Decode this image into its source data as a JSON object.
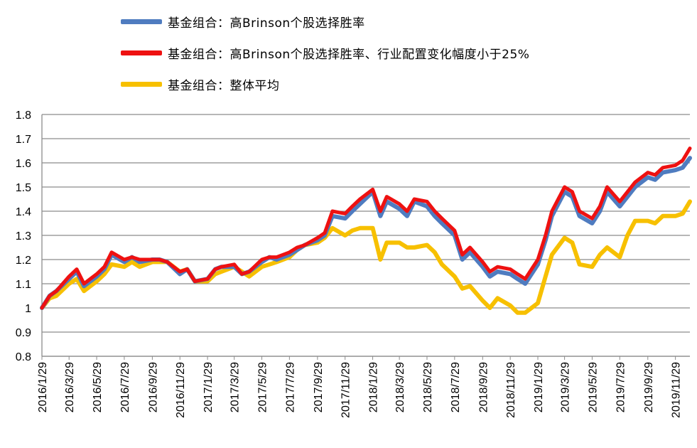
{
  "legend": [
    {
      "label": "基金组合：高Brinson个股选择胜率",
      "color": "#4F7CC0"
    },
    {
      "label": "基金组合：高Brinson个股选择胜率、行业配置变化幅度小于25%",
      "color": "#EE1111"
    },
    {
      "label": "基金组合：整体平均",
      "color": "#F7C000"
    }
  ],
  "chart_data": {
    "type": "line",
    "title": "",
    "xlabel": "",
    "ylabel": "",
    "ylim": [
      0.8,
      1.8
    ],
    "yticks": [
      "0.8",
      "0.9",
      "1",
      "1.1",
      "1.2",
      "1.3",
      "1.4",
      "1.5",
      "1.6",
      "1.7",
      "1.8"
    ],
    "grid": "horizontal",
    "legend_position": "top",
    "xticks": [
      "2016/1/29",
      "2016/3/29",
      "2016/5/29",
      "2016/7/29",
      "2016/9/29",
      "2016/11/29",
      "2017/1/29",
      "2017/3/29",
      "2017/5/29",
      "2017/7/29",
      "2017/9/29",
      "2017/11/29",
      "2018/1/29",
      "2018/3/29",
      "2018/5/29",
      "2018/7/29",
      "2018/9/29",
      "2018/11/29",
      "2019/1/29",
      "2019/3/29",
      "2019/5/29",
      "2019/7/29",
      "2019/9/29",
      "2019/11/29"
    ],
    "x": [
      "2016/1/29",
      "2016/2/15",
      "2016/3/1",
      "2016/3/29",
      "2016/4/15",
      "2016/5/1",
      "2016/5/29",
      "2016/6/15",
      "2016/7/1",
      "2016/7/29",
      "2016/8/15",
      "2016/9/1",
      "2016/9/29",
      "2016/10/15",
      "2016/11/1",
      "2016/11/29",
      "2016/12/15",
      "2017/1/1",
      "2017/1/29",
      "2017/2/15",
      "2017/3/1",
      "2017/3/29",
      "2017/4/15",
      "2017/5/1",
      "2017/5/29",
      "2017/6/15",
      "2017/7/1",
      "2017/7/29",
      "2017/8/15",
      "2017/9/1",
      "2017/9/29",
      "2017/10/15",
      "2017/11/1",
      "2017/11/29",
      "2017/12/15",
      "2018/1/1",
      "2018/1/29",
      "2018/2/15",
      "2018/3/1",
      "2018/3/29",
      "2018/4/15",
      "2018/5/1",
      "2018/5/29",
      "2018/6/15",
      "2018/7/1",
      "2018/7/29",
      "2018/8/15",
      "2018/9/1",
      "2018/9/29",
      "2018/10/15",
      "2018/11/1",
      "2018/11/29",
      "2018/12/15",
      "2019/1/1",
      "2019/1/29",
      "2019/2/15",
      "2019/3/1",
      "2019/3/29",
      "2019/4/15",
      "2019/5/1",
      "2019/5/29",
      "2019/6/15",
      "2019/7/1",
      "2019/7/29",
      "2019/8/15",
      "2019/9/1",
      "2019/9/29",
      "2019/10/15",
      "2019/11/1",
      "2019/11/29",
      "2019/12/15",
      "2019/12/31"
    ],
    "series": [
      {
        "name": "基金组合：高Brinson个股选择胜率",
        "color": "#4F7CC0",
        "values": [
          1.0,
          1.05,
          1.07,
          1.12,
          1.15,
          1.09,
          1.13,
          1.16,
          1.22,
          1.19,
          1.21,
          1.19,
          1.2,
          1.2,
          1.19,
          1.14,
          1.16,
          1.11,
          1.12,
          1.16,
          1.17,
          1.17,
          1.14,
          1.15,
          1.19,
          1.21,
          1.2,
          1.22,
          1.24,
          1.26,
          1.28,
          1.3,
          1.38,
          1.37,
          1.4,
          1.43,
          1.48,
          1.38,
          1.44,
          1.41,
          1.38,
          1.44,
          1.42,
          1.38,
          1.35,
          1.3,
          1.2,
          1.23,
          1.17,
          1.13,
          1.15,
          1.14,
          1.12,
          1.1,
          1.18,
          1.28,
          1.38,
          1.48,
          1.46,
          1.38,
          1.35,
          1.4,
          1.48,
          1.42,
          1.46,
          1.5,
          1.54,
          1.53,
          1.56,
          1.57,
          1.58,
          1.62
        ]
      },
      {
        "name": "基金组合：高Brinson个股选择胜率、行业配置变化幅度小于25%",
        "color": "#EE1111",
        "values": [
          1.0,
          1.05,
          1.07,
          1.13,
          1.16,
          1.1,
          1.14,
          1.17,
          1.23,
          1.2,
          1.21,
          1.2,
          1.2,
          1.2,
          1.19,
          1.15,
          1.16,
          1.11,
          1.12,
          1.16,
          1.17,
          1.18,
          1.14,
          1.15,
          1.2,
          1.21,
          1.21,
          1.23,
          1.25,
          1.26,
          1.29,
          1.31,
          1.4,
          1.39,
          1.42,
          1.45,
          1.49,
          1.4,
          1.46,
          1.43,
          1.4,
          1.45,
          1.44,
          1.4,
          1.37,
          1.32,
          1.22,
          1.25,
          1.19,
          1.15,
          1.17,
          1.16,
          1.14,
          1.12,
          1.2,
          1.3,
          1.4,
          1.5,
          1.48,
          1.4,
          1.37,
          1.42,
          1.5,
          1.44,
          1.48,
          1.52,
          1.56,
          1.55,
          1.58,
          1.59,
          1.61,
          1.66
        ]
      },
      {
        "name": "基金组合：整体平均",
        "color": "#F7C000",
        "values": [
          1.0,
          1.04,
          1.05,
          1.1,
          1.12,
          1.07,
          1.11,
          1.14,
          1.18,
          1.17,
          1.19,
          1.17,
          1.19,
          1.19,
          1.19,
          1.15,
          1.16,
          1.11,
          1.11,
          1.14,
          1.15,
          1.17,
          1.15,
          1.13,
          1.17,
          1.18,
          1.19,
          1.21,
          1.24,
          1.26,
          1.27,
          1.29,
          1.33,
          1.3,
          1.32,
          1.33,
          1.33,
          1.2,
          1.27,
          1.27,
          1.25,
          1.25,
          1.26,
          1.23,
          1.18,
          1.13,
          1.08,
          1.09,
          1.03,
          1.0,
          1.04,
          1.01,
          0.98,
          0.98,
          1.02,
          1.13,
          1.22,
          1.29,
          1.27,
          1.18,
          1.17,
          1.22,
          1.25,
          1.21,
          1.3,
          1.36,
          1.36,
          1.35,
          1.38,
          1.38,
          1.39,
          1.44
        ]
      }
    ]
  }
}
